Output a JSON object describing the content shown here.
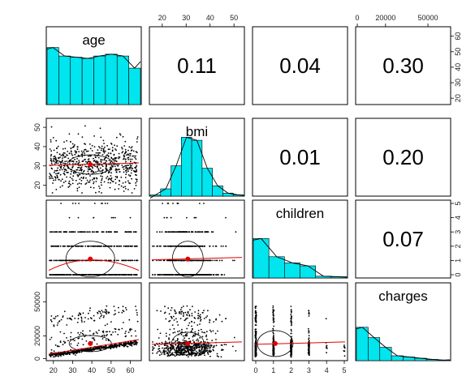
{
  "chart_data": {
    "type": "scatter-matrix",
    "title": "",
    "variables": [
      {
        "name": "age",
        "min": 18,
        "max": 64,
        "ticks": [
          "20",
          "30",
          "40",
          "50",
          "60"
        ]
      },
      {
        "name": "bmi",
        "min": 16,
        "max": 53,
        "ticks": [
          "20",
          "30",
          "40",
          "50"
        ]
      },
      {
        "name": "children",
        "min": 0,
        "max": 5,
        "ticks": [
          "0",
          "1",
          "2",
          "3",
          "4",
          "5"
        ]
      },
      {
        "name": "charges",
        "min": 1122,
        "max": 63770,
        "ticks": [
          "0",
          "20000",
          "50000"
        ]
      }
    ],
    "left_axis": {
      "bmi": [
        "20",
        "30",
        "40",
        "50"
      ],
      "charges": [
        "0",
        "20000",
        "50000"
      ]
    },
    "right_axis": {
      "age": [
        "20",
        "30",
        "40",
        "50",
        "60"
      ],
      "children": [
        "0",
        "1",
        "2",
        "3",
        "4",
        "5"
      ]
    },
    "top_axis": {
      "bmi": [
        "20",
        "30",
        "40",
        "50"
      ],
      "charges": [
        "0",
        "20000",
        "50000"
      ]
    },
    "bottom_axis": {
      "age": [
        "20",
        "30",
        "40",
        "50",
        "60"
      ],
      "children": [
        "0",
        "1",
        "2",
        "3",
        "4",
        "5"
      ]
    },
    "correlations": [
      {
        "pair": [
          "age",
          "bmi"
        ],
        "value": "0.11"
      },
      {
        "pair": [
          "age",
          "children"
        ],
        "value": "0.04"
      },
      {
        "pair": [
          "age",
          "charges"
        ],
        "value": "0.30"
      },
      {
        "pair": [
          "bmi",
          "children"
        ],
        "value": "0.01"
      },
      {
        "pair": [
          "bmi",
          "charges"
        ],
        "value": "0.20"
      },
      {
        "pair": [
          "children",
          "charges"
        ],
        "value": "0.07"
      }
    ],
    "histograms": {
      "age": {
        "counts": [
          0.94,
          0.8,
          0.78,
          0.76,
          0.8,
          0.83,
          0.8,
          0.6
        ]
      },
      "bmi": {
        "counts": [
          0.02,
          0.12,
          0.5,
          0.97,
          0.92,
          0.46,
          0.17,
          0.05,
          0.02
        ]
      },
      "children": {
        "counts": [
          0.65,
          0.35,
          0.25,
          0.2,
          0.03,
          0.02
        ]
      },
      "charges": {
        "counts": [
          0.55,
          0.38,
          0.22,
          0.08,
          0.06,
          0.04,
          0.02,
          0.01
        ]
      }
    },
    "means": {
      "age": 39.2,
      "bmi": 30.7,
      "children": 1.1,
      "charges": 13270
    },
    "colors": {
      "histogram_fill": "#00e5ee",
      "density_line": "#000000",
      "points": "#000000",
      "mean_point": "#e00000",
      "smooth_line": "#e00000",
      "ellipse": "#000000",
      "panel_border": "#000000"
    },
    "grid": false
  }
}
